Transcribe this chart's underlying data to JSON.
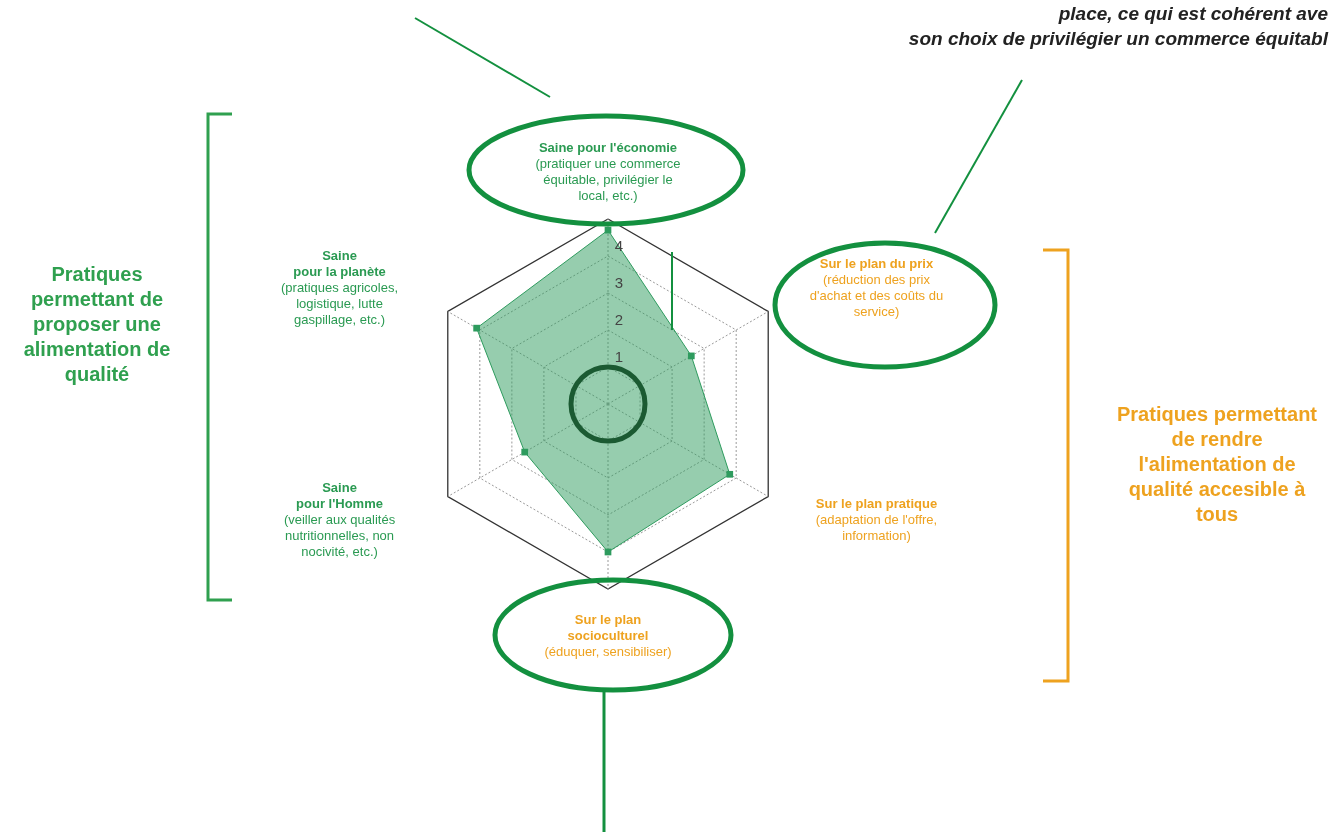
{
  "chart_data": {
    "type": "radar",
    "categories": [
      "Saine pour l'économie\n(pratiquer une commerce\néquitable, privilégier le\nlocal, etc.)",
      "Sur le plan du prix\n(réduction des prix\nd'achat et des coûts du\nservice)",
      "Sur le plan pratique\n(adaptation de l'offre,\ninformation)",
      "Sur le plan\nsocioculturel\n(éduquer, sensibiliser)",
      "Saine\npour l'Homme\n(veiller aux qualités\nnutritionnelles, non\nnocivité, etc.)",
      "Saine\npour la planète\n(pratiques agricoles,\nlogistique, lutte\ngaspillage, etc.)"
    ],
    "series": [
      {
        "color": "#2e9b5e",
        "values": [
          4.7,
          2.6,
          3.8,
          4.0,
          2.6,
          4.1
        ]
      }
    ],
    "ylim": [
      0,
      5
    ],
    "yticks": [
      1,
      2,
      3,
      4
    ],
    "grid": true,
    "marker": "square",
    "annotations": [
      "Pratiques\npermettant de\nproposer une\nalimentation de\nqualité",
      "Pratiques permettant\nde rendre\nl'alimentation de\nqualité accesible à\ntous",
      "place, ce qui est cohérent ave",
      "son choix de privilégier un commerce équitabl"
    ]
  }
}
